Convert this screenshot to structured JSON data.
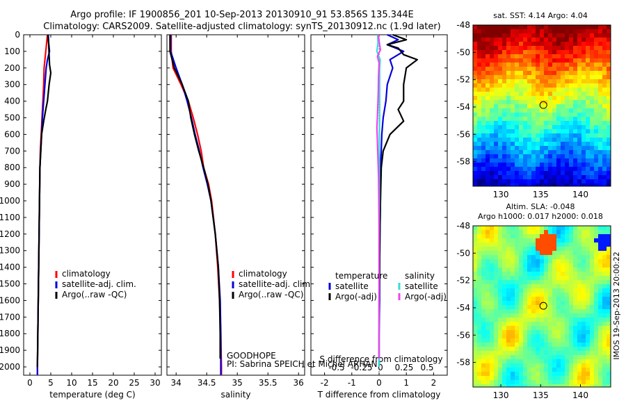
{
  "header": {
    "line1": "Argo profile: IF 1900856_201 10-Sep-2013 20130910_91 53.856S 135.344E",
    "line2": "Climatology: CARS2009. Satellite-adjusted climatology: synTS_20130912.nc (1.9d later)"
  },
  "colors": {
    "climatology": "#ff0000",
    "satellite": "#0000dd",
    "argo": "#000000",
    "salinity_satellite": "#33dddd",
    "salinity_argo": "#ee44ee"
  },
  "depth_axis": {
    "ticks": [
      "0",
      "100",
      "200",
      "300",
      "400",
      "500",
      "600",
      "700",
      "800",
      "900",
      "1000",
      "1100",
      "1200",
      "1300",
      "1400",
      "1500",
      "1600",
      "1700",
      "1800",
      "1900",
      "2000"
    ]
  },
  "annotations": {
    "program": "GOODHOPE",
    "pi": "PI: Sabrina SPEICH et Michel ARHAN",
    "timestamp": "IMOS 19-Sep-2013 20:00:22"
  },
  "sst_map": {
    "title": "sat. SST: 4.14 Argo: 4.04",
    "x_ticks": [
      "130",
      "135",
      "140"
    ],
    "y_ticks": [
      "-48",
      "-50",
      "-52",
      "-54",
      "-56",
      "-58"
    ]
  },
  "sla_map": {
    "title1": "Altim. SLA: -0.048",
    "title2": "Argo h1000: 0.017 h2000: 0.018",
    "x_ticks": [
      "130",
      "135",
      "140"
    ],
    "y_ticks": [
      "-48",
      "-50",
      "-52",
      "-54",
      "-56",
      "-58"
    ]
  },
  "chart_data": [
    {
      "type": "line",
      "name": "temperature",
      "xlabel": "temperature (deg C)",
      "x_ticks": [
        "0",
        "5",
        "10",
        "15",
        "20",
        "25",
        "30"
      ],
      "xlim": [
        -1.5,
        31.5
      ],
      "ylim": [
        2050,
        0
      ],
      "legend": {
        "position": "center",
        "entries": [
          "climatology",
          "satellite-adj. clim.",
          "Argo(..raw -QC)"
        ]
      },
      "series": [
        {
          "name": "climatology",
          "points": [
            [
              4.2,
              0
            ],
            [
              4.0,
              50
            ],
            [
              3.8,
              100
            ],
            [
              3.6,
              150
            ],
            [
              3.4,
              200
            ],
            [
              3.3,
              300
            ],
            [
              3.1,
              400
            ],
            [
              2.9,
              500
            ],
            [
              2.7,
              600
            ],
            [
              2.5,
              700
            ],
            [
              2.4,
              800
            ],
            [
              2.3,
              1000
            ],
            [
              2.2,
              1200
            ],
            [
              2.1,
              1400
            ],
            [
              2.0,
              1600
            ],
            [
              1.9,
              1800
            ],
            [
              1.8,
              2000
            ],
            [
              1.8,
              2050
            ]
          ]
        },
        {
          "name": "satellite-adj. clim.",
          "points": [
            [
              4.4,
              0
            ],
            [
              4.5,
              50
            ],
            [
              4.7,
              100
            ],
            [
              4.2,
              150
            ],
            [
              3.9,
              200
            ],
            [
              3.6,
              300
            ],
            [
              3.3,
              400
            ],
            [
              3.0,
              500
            ],
            [
              2.8,
              600
            ],
            [
              2.6,
              700
            ],
            [
              2.4,
              800
            ],
            [
              2.3,
              1000
            ],
            [
              2.2,
              1200
            ],
            [
              2.1,
              1400
            ],
            [
              2.0,
              1600
            ],
            [
              1.9,
              1800
            ],
            [
              1.8,
              2000
            ],
            [
              1.8,
              2050
            ]
          ]
        },
        {
          "name": "Argo(..raw -QC)",
          "points": [
            [
              4.3,
              0
            ],
            [
              4.5,
              60
            ],
            [
              4.6,
              120
            ],
            [
              4.7,
              180
            ],
            [
              5.0,
              230
            ],
            [
              4.6,
              300
            ],
            [
              4.2,
              400
            ],
            [
              3.8,
              450
            ],
            [
              3.3,
              520
            ],
            [
              2.8,
              600
            ],
            [
              2.6,
              700
            ],
            [
              2.4,
              800
            ],
            [
              2.3,
              1000
            ],
            [
              2.2,
              1200
            ],
            [
              2.1,
              1400
            ],
            [
              2.0,
              1600
            ],
            [
              1.9,
              1800
            ],
            [
              1.8,
              2000
            ]
          ]
        }
      ]
    },
    {
      "type": "line",
      "name": "salinity",
      "xlabel": "salinity",
      "x_ticks": [
        "34",
        "34.5",
        "35",
        "35.5",
        "36"
      ],
      "xlim": [
        33.85,
        36.1
      ],
      "ylim": [
        2050,
        0
      ],
      "legend": {
        "position": "center",
        "entries": [
          "climatology",
          "satellite-adj. clim.",
          "Argo(..raw -QC)"
        ]
      },
      "series": [
        {
          "name": "climatology",
          "points": [
            [
              33.92,
              0
            ],
            [
              33.92,
              100
            ],
            [
              33.95,
              200
            ],
            [
              34.08,
              300
            ],
            [
              34.2,
              400
            ],
            [
              34.28,
              500
            ],
            [
              34.35,
              600
            ],
            [
              34.41,
              700
            ],
            [
              34.45,
              800
            ],
            [
              34.53,
              900
            ],
            [
              34.58,
              1000
            ],
            [
              34.64,
              1200
            ],
            [
              34.68,
              1400
            ],
            [
              34.71,
              1600
            ],
            [
              34.73,
              1800
            ],
            [
              34.74,
              2000
            ],
            [
              34.74,
              2050
            ]
          ]
        },
        {
          "name": "satellite-adj. clim.",
          "points": [
            [
              33.91,
              0
            ],
            [
              33.91,
              100
            ],
            [
              34.0,
              200
            ],
            [
              34.1,
              300
            ],
            [
              34.18,
              400
            ],
            [
              34.25,
              500
            ],
            [
              34.31,
              600
            ],
            [
              34.38,
              700
            ],
            [
              34.44,
              800
            ],
            [
              34.51,
              900
            ],
            [
              34.57,
              1000
            ],
            [
              34.64,
              1200
            ],
            [
              34.69,
              1400
            ],
            [
              34.72,
              1600
            ],
            [
              34.73,
              1800
            ],
            [
              34.73,
              2000
            ],
            [
              34.73,
              2050
            ]
          ]
        },
        {
          "name": "Argo(..raw -QC)",
          "points": [
            [
              33.9,
              0
            ],
            [
              33.9,
              100
            ],
            [
              33.97,
              200
            ],
            [
              34.1,
              300
            ],
            [
              34.2,
              400
            ],
            [
              34.24,
              500
            ],
            [
              34.3,
              600
            ],
            [
              34.37,
              700
            ],
            [
              34.45,
              800
            ],
            [
              34.52,
              900
            ],
            [
              34.57,
              1000
            ],
            [
              34.64,
              1200
            ],
            [
              34.69,
              1400
            ],
            [
              34.71,
              1600
            ],
            [
              34.72,
              1800
            ],
            [
              34.72,
              1950
            ]
          ]
        }
      ]
    },
    {
      "type": "line",
      "name": "difference",
      "xlabel": "T difference from climatology",
      "top_label": "S difference from climatology",
      "x_ticks": [
        "-2",
        "-1",
        "0",
        "1",
        "2"
      ],
      "top_ticks": [
        "-0.5",
        "-0.25",
        "0",
        "0.25",
        "0.5"
      ],
      "xlim": [
        -2.5,
        2.5
      ],
      "ylim": [
        2050,
        0
      ],
      "legend": {
        "position": "lower-center",
        "groups": [
          {
            "title": "temperature",
            "entries": [
              "satellite",
              "Argo(-adj)"
            ]
          },
          {
            "title": "salinity",
            "entries": [
              "satellite",
              "Argo(-adj)"
            ]
          }
        ]
      },
      "series": [
        {
          "name": "temperature satellite",
          "points": [
            [
              0.3,
              0
            ],
            [
              0.7,
              30
            ],
            [
              0.3,
              60
            ],
            [
              0.9,
              100
            ],
            [
              0.4,
              150
            ],
            [
              0.5,
              200
            ],
            [
              0.3,
              300
            ],
            [
              0.25,
              400
            ],
            [
              0.15,
              500
            ],
            [
              0.1,
              600
            ],
            [
              0.08,
              700
            ],
            [
              0.05,
              800
            ],
            [
              0.05,
              1000
            ],
            [
              0.03,
              1200
            ],
            [
              0.02,
              1400
            ],
            [
              0.02,
              1600
            ],
            [
              0.0,
              1800
            ],
            [
              0.0,
              2000
            ]
          ]
        },
        {
          "name": "temperature Argo(-adj)",
          "points": [
            [
              0.5,
              0
            ],
            [
              1.0,
              30
            ],
            [
              0.3,
              60
            ],
            [
              0.7,
              80
            ],
            [
              0.9,
              120
            ],
            [
              1.4,
              150
            ],
            [
              1.0,
              200
            ],
            [
              0.9,
              300
            ],
            [
              0.9,
              400
            ],
            [
              0.7,
              450
            ],
            [
              0.9,
              520
            ],
            [
              0.4,
              600
            ],
            [
              0.15,
              700
            ],
            [
              0.08,
              800
            ],
            [
              0.05,
              1000
            ],
            [
              0.03,
              1200
            ],
            [
              0.02,
              1400
            ],
            [
              0.0,
              1600
            ],
            [
              0.0,
              1800
            ],
            [
              0.0,
              2000
            ]
          ]
        },
        {
          "name": "salinity satellite",
          "points": [
            [
              -0.05,
              0
            ],
            [
              -0.04,
              50
            ],
            [
              -0.08,
              100
            ],
            [
              0.04,
              150
            ],
            [
              0.02,
              200
            ],
            [
              0.02,
              300
            ],
            [
              0.02,
              400
            ],
            [
              0.02,
              500
            ],
            [
              0.01,
              600
            ],
            [
              0.01,
              800
            ],
            [
              0.01,
              1000
            ],
            [
              0.0,
              1200
            ],
            [
              0.0,
              1400
            ],
            [
              0.0,
              1600
            ],
            [
              0.0,
              1800
            ],
            [
              0.0,
              2000
            ]
          ]
        },
        {
          "name": "salinity Argo(-adj)",
          "points": [
            [
              -0.03,
              0
            ],
            [
              0.02,
              60
            ],
            [
              0.05,
              90
            ],
            [
              -0.06,
              130
            ],
            [
              0.0,
              170
            ],
            [
              -0.02,
              250
            ],
            [
              -0.03,
              350
            ],
            [
              -0.05,
              450
            ],
            [
              -0.08,
              560
            ],
            [
              -0.06,
              650
            ],
            [
              -0.04,
              750
            ],
            [
              -0.02,
              850
            ],
            [
              -0.01,
              1000
            ],
            [
              0.0,
              1200
            ],
            [
              0.0,
              1400
            ],
            [
              0.0,
              1600
            ],
            [
              0.0,
              1800
            ],
            [
              0.0,
              1950
            ]
          ]
        }
      ]
    }
  ]
}
